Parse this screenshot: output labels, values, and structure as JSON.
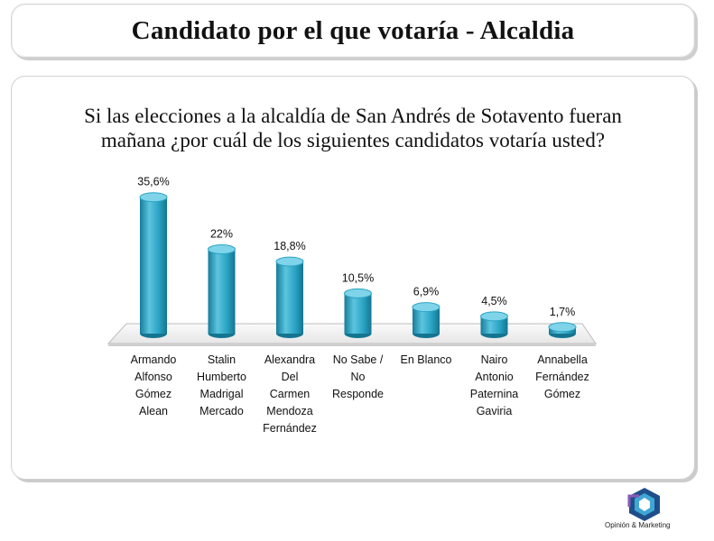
{
  "header": {
    "title": "Candidato por el que votaría - Alcaldia"
  },
  "question": {
    "line1": "Si las elecciones a la alcaldía de San Andrés de Sotavento fueran",
    "line2": "mañana ¿por cuál de los siguientes candidatos votaría usted?"
  },
  "logo": {
    "text": "Opinión & Marketing"
  },
  "colors": {
    "bar": "#2aa3c4",
    "bar_dark": "#167c9a",
    "bar_light": "#5cc5df",
    "floor": "#f4f4f4"
  },
  "chart_data": {
    "type": "bar",
    "title": "",
    "xlabel": "",
    "ylabel": "",
    "ylim": [
      0,
      40
    ],
    "grid": false,
    "legend": "none",
    "categories": [
      [
        "Armando",
        "Alfonso",
        "Gómez",
        "Alean"
      ],
      [
        "Stalin",
        "Humberto",
        "Madrigal",
        "Mercado"
      ],
      [
        "Alexandra",
        "Del",
        "Carmen",
        "Mendoza",
        "Fernández"
      ],
      [
        "No Sabe /",
        "No",
        "Responde"
      ],
      [
        "En Blanco"
      ],
      [
        "Nairo",
        "Antonio",
        "Paternina",
        "Gaviria"
      ],
      [
        "Annabella",
        "Fernández",
        "Gómez"
      ]
    ],
    "values": [
      35.6,
      22,
      18.8,
      10.5,
      6.9,
      4.5,
      1.7
    ],
    "value_labels": [
      "35,6%",
      "22%",
      "18,8%",
      "10,5%",
      "6,9%",
      "4,5%",
      "1,7%"
    ]
  }
}
